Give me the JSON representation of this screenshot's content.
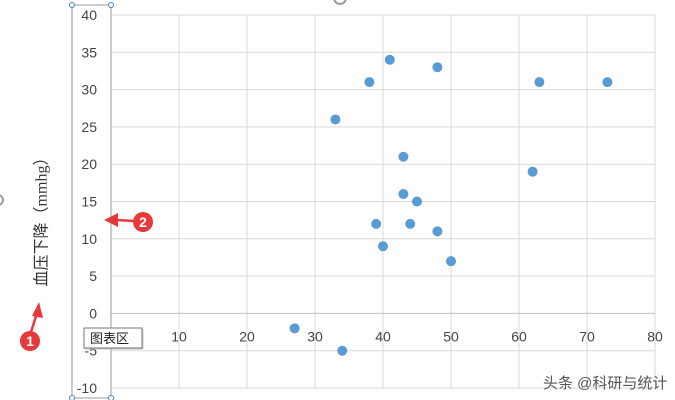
{
  "chart_data": {
    "type": "scatter",
    "title": "",
    "xlabel": "",
    "ylabel": "血压下降（mmhg）",
    "xlim": [
      0,
      80
    ],
    "ylim": [
      -10,
      40
    ],
    "x_ticks": [
      0,
      10,
      20,
      30,
      40,
      50,
      60,
      70,
      80
    ],
    "y_ticks": [
      -10,
      -5,
      0,
      5,
      10,
      15,
      20,
      25,
      30,
      35,
      40
    ],
    "grid": true,
    "point_color": "#5b9bd5",
    "points": [
      {
        "x": 27,
        "y": -2
      },
      {
        "x": 34,
        "y": -5
      },
      {
        "x": 33,
        "y": 26
      },
      {
        "x": 38,
        "y": 31
      },
      {
        "x": 39,
        "y": 12
      },
      {
        "x": 40,
        "y": 9
      },
      {
        "x": 41,
        "y": 34
      },
      {
        "x": 43,
        "y": 21
      },
      {
        "x": 43,
        "y": 16
      },
      {
        "x": 44,
        "y": 12
      },
      {
        "x": 45,
        "y": 15
      },
      {
        "x": 48,
        "y": 33
      },
      {
        "x": 48,
        "y": 11
      },
      {
        "x": 50,
        "y": 7
      },
      {
        "x": 62,
        "y": 19
      },
      {
        "x": 63,
        "y": 31
      },
      {
        "x": 73,
        "y": 31
      }
    ]
  },
  "annotations": {
    "marker_1": "1",
    "marker_2": "2",
    "marker_color": "#e8393a",
    "tooltip": "图表区"
  },
  "watermark": "头条 @科研与统计"
}
